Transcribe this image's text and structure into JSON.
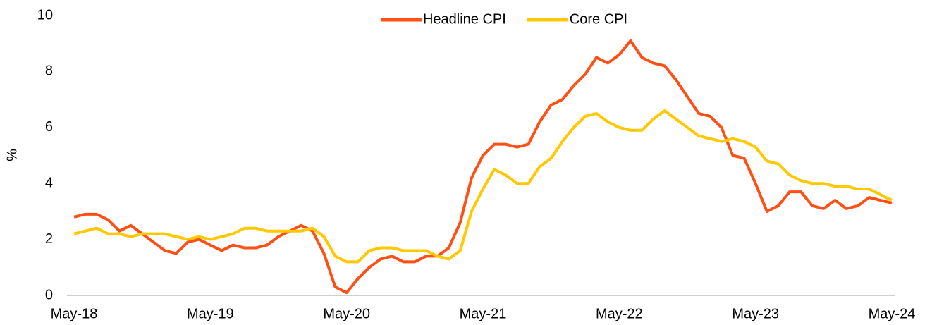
{
  "chart_data": {
    "type": "line",
    "y_label": "%",
    "categories": [
      "May-18",
      null,
      null,
      null,
      null,
      null,
      null,
      null,
      null,
      null,
      null,
      null,
      "May-19",
      null,
      null,
      null,
      null,
      null,
      null,
      null,
      null,
      null,
      null,
      null,
      "May-20",
      null,
      null,
      null,
      null,
      null,
      null,
      null,
      null,
      null,
      null,
      null,
      "May-21",
      null,
      null,
      null,
      null,
      null,
      null,
      null,
      null,
      null,
      null,
      null,
      "May-22",
      null,
      null,
      null,
      null,
      null,
      null,
      null,
      null,
      null,
      null,
      null,
      "May-23",
      null,
      null,
      null,
      null,
      null,
      null,
      null,
      null,
      null,
      null,
      null,
      "May-24"
    ],
    "series": [
      {
        "name": "Headline CPI",
        "color": "#ff4f14",
        "values": [
          2.8,
          2.9,
          2.9,
          2.7,
          2.3,
          2.5,
          2.2,
          1.9,
          1.6,
          1.5,
          1.9,
          2.0,
          1.8,
          1.6,
          1.8,
          1.7,
          1.7,
          1.8,
          2.1,
          2.3,
          2.5,
          2.3,
          1.5,
          0.3,
          0.1,
          0.6,
          1.0,
          1.3,
          1.4,
          1.2,
          1.2,
          1.4,
          1.4,
          1.7,
          2.6,
          4.2,
          5.0,
          5.4,
          5.4,
          5.3,
          5.4,
          6.2,
          6.8,
          7.0,
          7.5,
          7.9,
          8.5,
          8.3,
          8.6,
          9.1,
          8.5,
          8.3,
          8.2,
          7.7,
          7.1,
          6.5,
          6.4,
          6.0,
          5.0,
          4.9,
          4.0,
          3.0,
          3.2,
          3.7,
          3.7,
          3.2,
          3.1,
          3.4,
          3.1,
          3.2,
          3.5,
          3.4,
          3.3
        ]
      },
      {
        "name": "Core CPI",
        "color": "#ffc800",
        "values": [
          2.2,
          2.3,
          2.4,
          2.2,
          2.2,
          2.1,
          2.2,
          2.2,
          2.2,
          2.1,
          2.0,
          2.1,
          2.0,
          2.1,
          2.2,
          2.4,
          2.4,
          2.3,
          2.3,
          2.3,
          2.3,
          2.4,
          2.1,
          1.4,
          1.2,
          1.2,
          1.6,
          1.7,
          1.7,
          1.6,
          1.6,
          1.6,
          1.4,
          1.3,
          1.6,
          3.0,
          3.8,
          4.5,
          4.3,
          4.0,
          4.0,
          4.6,
          4.9,
          5.5,
          6.0,
          6.4,
          6.5,
          6.2,
          6.0,
          5.9,
          5.9,
          6.3,
          6.6,
          6.3,
          6.0,
          5.7,
          5.6,
          5.5,
          5.6,
          5.5,
          5.3,
          4.8,
          4.7,
          4.3,
          4.1,
          4.0,
          4.0,
          3.9,
          3.9,
          3.8,
          3.8,
          3.6,
          3.4
        ]
      }
    ],
    "ylim": [
      0,
      10
    ],
    "yticks": [
      0,
      2,
      4,
      6,
      8,
      10
    ],
    "grid": false,
    "legend": "top"
  }
}
